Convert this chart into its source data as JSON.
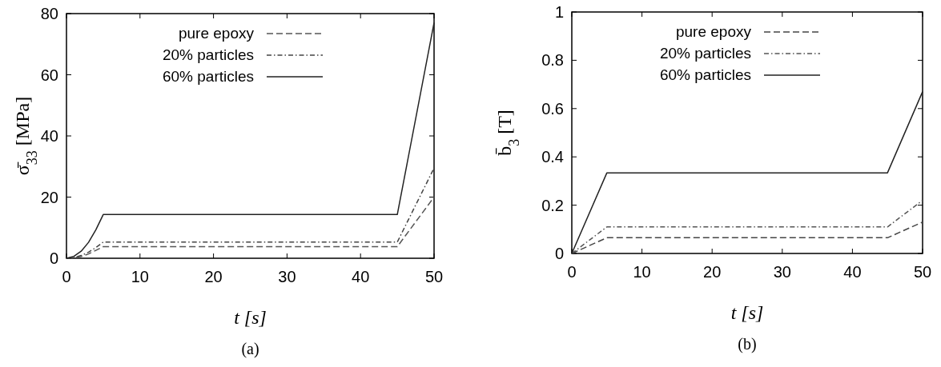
{
  "chart_data": [
    {
      "type": "line",
      "xlabel": "t [s]",
      "ylabel": "σ̄$_{33}$ [MPa]",
      "annotations": [
        "(a)"
      ],
      "xlim": [
        0,
        50
      ],
      "xticks": [
        0,
        10,
        20,
        30,
        40,
        50
      ],
      "ylim": [
        0,
        80
      ],
      "yticks": [
        0,
        20,
        40,
        60,
        80
      ],
      "legend": "top",
      "x": [
        0,
        1,
        2,
        3,
        4,
        5,
        45,
        50
      ],
      "series": [
        {
          "name": "pure epoxy",
          "color": "#555555",
          "line_style": "dashed",
          "values": [
            0,
            0.2,
            0.6,
            1.4,
            2.6,
            3.8,
            3.8,
            20
          ]
        },
        {
          "name": "20% particles",
          "color": "#444444",
          "line_style": "dotted",
          "values": [
            0,
            0.2,
            0.9,
            2,
            3.5,
            5.3,
            5.3,
            29.5
          ]
        },
        {
          "name": "60% particles",
          "color": "#222222",
          "line_style": "solid",
          "values": [
            0,
            0.6,
            2.3,
            5.2,
            9.3,
            14.3,
            14.3,
            77
          ]
        }
      ]
    },
    {
      "type": "line",
      "xlabel": "t [s]",
      "ylabel": "b̄$_{3}$ [T]",
      "annotations": [
        "(b)"
      ],
      "xlim": [
        0,
        50
      ],
      "xticks": [
        0,
        10,
        20,
        30,
        40,
        50
      ],
      "ylim": [
        0,
        1
      ],
      "yticks": [
        0,
        0.2,
        0.4,
        0.6,
        0.8,
        1
      ],
      "legend": "top",
      "x": [
        0,
        5,
        45,
        50
      ],
      "series": [
        {
          "name": "pure epoxy",
          "color": "#444444",
          "line_style": "dashed",
          "values": [
            0,
            0.065,
            0.065,
            0.13
          ]
        },
        {
          "name": "20% particles",
          "color": "#555555",
          "line_style": "dotted",
          "values": [
            0,
            0.11,
            0.11,
            0.22
          ]
        },
        {
          "name": "60% particles",
          "color": "#222222",
          "line_style": "solid",
          "values": [
            0,
            0.334,
            0.334,
            0.67
          ]
        }
      ]
    }
  ]
}
